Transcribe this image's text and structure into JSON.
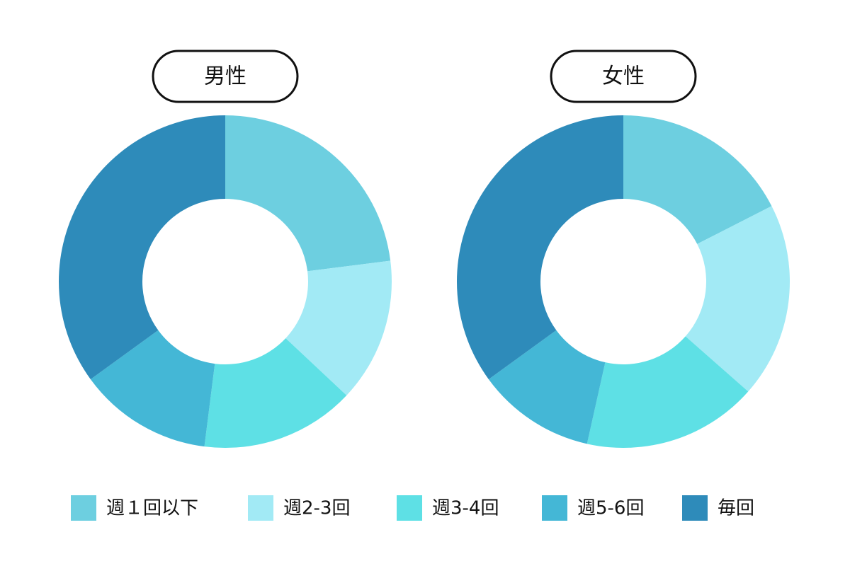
{
  "legend": {
    "labels": [
      "週１回以下",
      "週2-3回",
      "週3-4回",
      "週5-6回",
      "毎回"
    ],
    "colors": [
      "#6dcfe0",
      "#a2eaf5",
      "#5ee0e5",
      "#44b7d6",
      "#2e8bba"
    ]
  },
  "chart_data": [
    {
      "type": "pie",
      "title": "男性",
      "values": [
        23,
        14,
        15,
        13,
        35
      ]
    },
    {
      "type": "pie",
      "title": "女性",
      "values": [
        17.5,
        19,
        17,
        11.5,
        35
      ]
    }
  ]
}
